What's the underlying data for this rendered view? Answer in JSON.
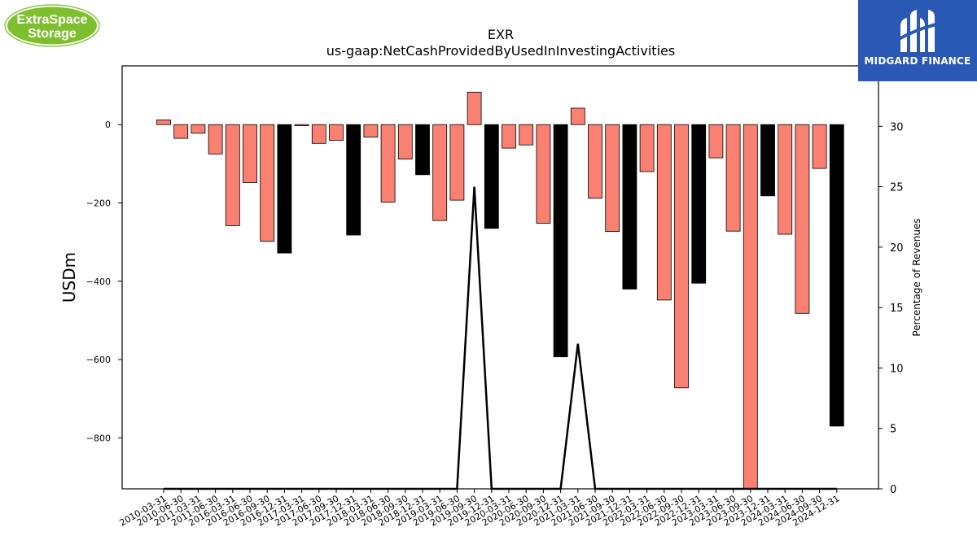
{
  "logos": {
    "left_line1": "ExtraSpace",
    "left_line2": "Storage",
    "right_text": "MIDGARD FINANCE"
  },
  "chart_data": {
    "type": "bar",
    "title": "EXR",
    "subtitle": "us-gaap:NetCashProvidedByUsedInInvestingActivities",
    "ylabel": "USDm",
    "ylabel_right": "Percentage of Revenues",
    "ylim": [
      -930,
      150
    ],
    "ylim_right": [
      0,
      35
    ],
    "yticks": [
      0,
      -200,
      -400,
      -600,
      -800
    ],
    "yticks_right": [
      0,
      5,
      10,
      15,
      20,
      25,
      30
    ],
    "x_tick_labels": [
      "2010-03-31",
      "2010-06-30",
      "2011-03-31",
      "2011-06-30",
      "2016-03-31",
      "2016-06-30",
      "2016-09-30",
      "2016-12-31",
      "2017-03-31",
      "2017-06-30",
      "2017-09-30",
      "2017-12-31",
      "2018-03-31",
      "2018-06-30",
      "2018-09-30",
      "2018-12-31",
      "2019-03-31",
      "2019-06-30",
      "2019-09-30",
      "2019-12-31",
      "2020-03-31",
      "2020-06-30",
      "2020-09-30",
      "2020-12-31",
      "2021-03-31",
      "2021-06-30",
      "2021-09-30",
      "2021-12-31",
      "2022-03-31",
      "2022-06-30",
      "2022-09-30",
      "2022-12-31",
      "2023-03-31",
      "2023-06-30",
      "2023-09-30",
      "2023-12-31",
      "2024-03-31",
      "2024-06-30",
      "2024-09-30",
      "2024-12-31"
    ],
    "bars": {
      "values": [
        12,
        -35,
        -22,
        -75,
        -258,
        -148,
        -298,
        -328,
        -3,
        -48,
        -40,
        -282,
        -32,
        -198,
        -88,
        -128,
        -245,
        -193,
        83,
        -265,
        -60,
        -52,
        -252,
        -593,
        42,
        -188,
        -273,
        -420,
        -120,
        -448,
        -672,
        -405,
        -85,
        -272,
        -930,
        -182,
        -280,
        -482,
        -112,
        -770
      ],
      "highlight": [
        false,
        false,
        false,
        false,
        false,
        false,
        false,
        true,
        false,
        false,
        false,
        true,
        false,
        false,
        false,
        true,
        false,
        false,
        false,
        true,
        false,
        false,
        false,
        true,
        false,
        false,
        false,
        true,
        false,
        false,
        false,
        true,
        false,
        false,
        false,
        true,
        false,
        false,
        false,
        true
      ],
      "color_default": "#fa8072",
      "color_highlight": "#000000"
    },
    "line": {
      "name": "Percentage of Revenues",
      "color": "#000000",
      "values": [
        0,
        0,
        0,
        0,
        0,
        0,
        0,
        0,
        0,
        0,
        0,
        0,
        0,
        0,
        0,
        0,
        0,
        0,
        25,
        0,
        0,
        0,
        0,
        0,
        12,
        0,
        0,
        0,
        0,
        0,
        0,
        0,
        0,
        0,
        0,
        0,
        0,
        0,
        0,
        0
      ]
    },
    "grid": false
  }
}
